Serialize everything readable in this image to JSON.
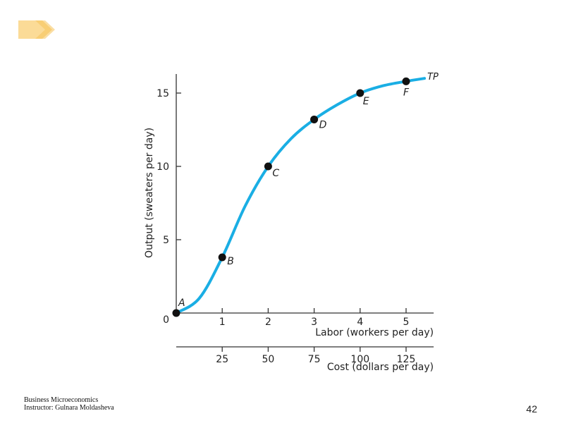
{
  "footer": {
    "course": "Business Microeconomics",
    "instructor": "Instructor: Gulnara Moldasheva",
    "page_number": "42"
  },
  "colors": {
    "curve": "#1aaee4",
    "point": "#111111",
    "axis": "#333333",
    "logo_fill": "#fbdb97"
  },
  "logo": {
    "icon": "diamond-arrow-icon"
  },
  "chart_data": {
    "type": "line",
    "title": "",
    "ylabel": "Output (sweaters per day)",
    "xlabel": "Labor (workers per day)",
    "x2label": "Cost (dollars per day)",
    "origin_label": "0",
    "xlim": [
      0,
      5.6
    ],
    "ylim": [
      0,
      16.3
    ],
    "xticks": [
      1,
      2,
      3,
      4,
      5
    ],
    "yticks": [
      5,
      10,
      15
    ],
    "x2ticks": [
      {
        "x": 1,
        "label": "25"
      },
      {
        "x": 2,
        "label": "50"
      },
      {
        "x": 3,
        "label": "75"
      },
      {
        "x": 4,
        "label": "100"
      },
      {
        "x": 5,
        "label": "125"
      }
    ],
    "series": [
      {
        "name": "TP",
        "x": [
          0,
          0.5,
          1,
          1.5,
          2,
          2.5,
          3,
          3.5,
          4,
          4.5,
          5,
          5.4
        ],
        "y": [
          0,
          1,
          3.8,
          7.3,
          10,
          11.9,
          13.2,
          14.2,
          15,
          15.5,
          15.8,
          16
        ]
      }
    ],
    "points": [
      {
        "label": "A",
        "x": 0,
        "y": 0
      },
      {
        "label": "B",
        "x": 1,
        "y": 3.8
      },
      {
        "label": "C",
        "x": 2,
        "y": 10
      },
      {
        "label": "D",
        "x": 3,
        "y": 13.2
      },
      {
        "label": "E",
        "x": 4,
        "y": 15
      },
      {
        "label": "F",
        "x": 5,
        "y": 15.8
      }
    ]
  }
}
